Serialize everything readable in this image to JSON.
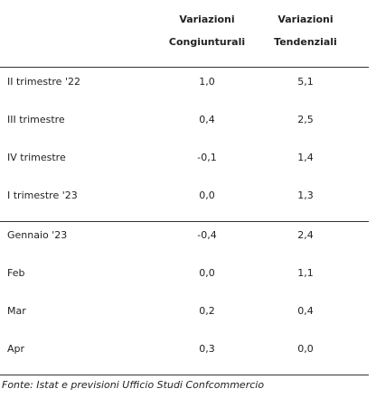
{
  "table": {
    "header": [
      [
        "Variazioni",
        "Congiunturali"
      ],
      [
        "Variazioni",
        "Tendenziali"
      ]
    ],
    "groups": [
      [
        [
          "II trimestre '22",
          "1,0",
          "5,1"
        ],
        [
          "III trimestre",
          "0,4",
          "2,5"
        ],
        [
          "IV trimestre",
          "-0,1",
          "1,4"
        ],
        [
          "I trimestre '23",
          "0,0",
          "1,3"
        ]
      ],
      [
        [
          "Gennaio '23",
          "-0,4",
          "2,4"
        ],
        [
          "Feb",
          "0,0",
          "1,1"
        ],
        [
          "Mar",
          "0,2",
          "0,4"
        ],
        [
          "Apr",
          "0,3",
          "0,0"
        ]
      ]
    ],
    "footnote": "Fonte: Istat e previsioni Ufficio Studi Confcommercio"
  }
}
